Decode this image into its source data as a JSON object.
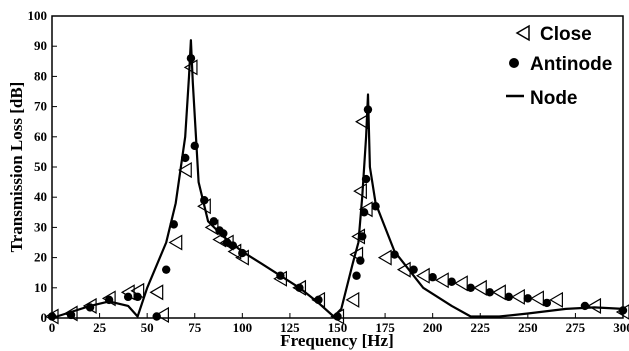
{
  "chart_data": {
    "type": "scatter",
    "title": "",
    "xlabel": "Frequency [Hz]",
    "ylabel": "Transmission Loss [dB]",
    "xlim": [
      0,
      300
    ],
    "ylim": [
      0,
      100
    ],
    "xticks": [
      0,
      25,
      50,
      75,
      100,
      125,
      150,
      175,
      200,
      225,
      250,
      275,
      300
    ],
    "yticks": [
      0,
      10,
      20,
      30,
      40,
      50,
      60,
      70,
      80,
      90,
      100
    ],
    "grid": false,
    "legend_position": "top-right",
    "series": [
      {
        "name": "Close",
        "marker": "left-triangle",
        "points": [
          [
            0,
            0.5
          ],
          [
            10,
            1.5
          ],
          [
            20,
            4
          ],
          [
            30,
            6.5
          ],
          [
            40,
            8.5
          ],
          [
            45,
            9
          ],
          [
            55,
            8.5
          ],
          [
            58,
            1
          ],
          [
            65,
            25
          ],
          [
            70,
            49
          ],
          [
            73,
            83
          ],
          [
            80,
            37
          ],
          [
            84,
            30
          ],
          [
            88,
            26
          ],
          [
            92,
            25
          ],
          [
            96,
            22
          ],
          [
            100,
            20
          ],
          [
            120,
            13
          ],
          [
            130,
            10
          ],
          [
            140,
            6
          ],
          [
            150,
            0.5
          ],
          [
            158,
            6
          ],
          [
            160,
            21
          ],
          [
            161,
            27
          ],
          [
            162,
            42
          ],
          [
            163,
            65
          ],
          [
            165,
            36
          ],
          [
            175,
            20
          ],
          [
            185,
            16
          ],
          [
            195,
            14
          ],
          [
            205,
            12.5
          ],
          [
            215,
            11.5
          ],
          [
            225,
            10
          ],
          [
            235,
            8.5
          ],
          [
            245,
            7
          ],
          [
            255,
            6.5
          ],
          [
            265,
            6
          ],
          [
            285,
            4
          ],
          [
            300,
            2
          ]
        ]
      },
      {
        "name": "Antinode",
        "marker": "filled-circle",
        "points": [
          [
            0,
            0.5
          ],
          [
            10,
            1
          ],
          [
            20,
            3.5
          ],
          [
            30,
            6
          ],
          [
            40,
            7
          ],
          [
            45,
            7
          ],
          [
            55,
            0.5
          ],
          [
            60,
            16
          ],
          [
            64,
            31
          ],
          [
            70,
            53
          ],
          [
            73,
            86
          ],
          [
            75,
            57
          ],
          [
            80,
            39
          ],
          [
            85,
            32
          ],
          [
            88,
            29
          ],
          [
            90,
            28
          ],
          [
            92,
            25
          ],
          [
            95,
            24
          ],
          [
            100,
            21.5
          ],
          [
            120,
            14
          ],
          [
            130,
            10
          ],
          [
            140,
            6
          ],
          [
            150,
            0.5
          ],
          [
            160,
            14
          ],
          [
            162,
            19
          ],
          [
            163,
            27
          ],
          [
            164,
            35
          ],
          [
            165,
            46
          ],
          [
            166,
            69
          ],
          [
            170,
            37
          ],
          [
            180,
            21
          ],
          [
            190,
            16
          ],
          [
            200,
            13.5
          ],
          [
            210,
            12
          ],
          [
            220,
            10
          ],
          [
            230,
            8.5
          ],
          [
            240,
            7
          ],
          [
            250,
            6.5
          ],
          [
            260,
            5
          ],
          [
            280,
            4
          ],
          [
            300,
            2.5
          ]
        ]
      },
      {
        "name": "Node",
        "style": "line",
        "points": [
          [
            0,
            0
          ],
          [
            10,
            2
          ],
          [
            20,
            4
          ],
          [
            30,
            5.5
          ],
          [
            40,
            4
          ],
          [
            45,
            0.5
          ],
          [
            50,
            10
          ],
          [
            60,
            25
          ],
          [
            65,
            38
          ],
          [
            70,
            60
          ],
          [
            72,
            80
          ],
          [
            73,
            92
          ],
          [
            74,
            78
          ],
          [
            77,
            45
          ],
          [
            82,
            32
          ],
          [
            90,
            27
          ],
          [
            100,
            22
          ],
          [
            110,
            18
          ],
          [
            120,
            14
          ],
          [
            130,
            10
          ],
          [
            140,
            5
          ],
          [
            148,
            0.5
          ],
          [
            152,
            3
          ],
          [
            158,
            18
          ],
          [
            161,
            25
          ],
          [
            163,
            40
          ],
          [
            165,
            60
          ],
          [
            166,
            74
          ],
          [
            167,
            50
          ],
          [
            170,
            38
          ],
          [
            180,
            22
          ],
          [
            195,
            10
          ],
          [
            210,
            4
          ],
          [
            220,
            0.5
          ],
          [
            235,
            0.5
          ],
          [
            250,
            1.5
          ],
          [
            270,
            3
          ],
          [
            285,
            3.5
          ],
          [
            300,
            3
          ]
        ]
      }
    ]
  }
}
